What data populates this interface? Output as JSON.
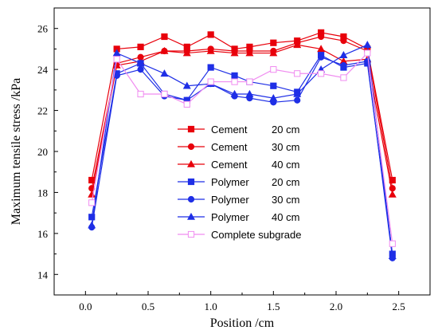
{
  "chart_data": {
    "type": "line",
    "xlabel": "Position /cm",
    "ylabel": "Maximum tensile stress /kPa",
    "xlim": [
      -0.25,
      2.75
    ],
    "ylim": [
      13,
      27
    ],
    "xticks": [
      "0.0",
      "0.5",
      "1.0",
      "1.5",
      "2.0",
      "2.5"
    ],
    "xtick_values": [
      0,
      0.5,
      1.0,
      1.5,
      2.0,
      2.5
    ],
    "yticks": [
      "14",
      "16",
      "18",
      "20",
      "22",
      "24",
      "26"
    ],
    "ytick_values": [
      14,
      16,
      18,
      20,
      22,
      24,
      26
    ],
    "legend_position": "center",
    "grid": false,
    "series": [
      {
        "name": "Cement",
        "depth": "20 cm",
        "color": "#e8000b",
        "marker": "square",
        "filled": true,
        "x": [
          0.05,
          0.25,
          0.44,
          0.63,
          0.81,
          1.0,
          1.19,
          1.31,
          1.5,
          1.69,
          1.88,
          2.06,
          2.25,
          2.45
        ],
        "y": [
          18.6,
          25.0,
          25.1,
          25.6,
          25.1,
          25.7,
          25.0,
          25.1,
          25.3,
          25.4,
          25.8,
          25.6,
          25.0,
          18.6
        ]
      },
      {
        "name": "Cement",
        "depth": "30 cm",
        "color": "#e8000b",
        "marker": "circle",
        "filled": true,
        "x": [
          0.05,
          0.25,
          0.44,
          0.63,
          0.81,
          1.0,
          1.19,
          1.31,
          1.5,
          1.69,
          1.88,
          2.06,
          2.25,
          2.45
        ],
        "y": [
          18.2,
          24.3,
          24.6,
          24.9,
          24.9,
          25.0,
          24.9,
          24.9,
          24.9,
          25.3,
          25.6,
          25.4,
          24.9,
          18.2
        ]
      },
      {
        "name": "Cement",
        "depth": "40 cm",
        "color": "#e8000b",
        "marker": "triangle",
        "filled": true,
        "x": [
          0.05,
          0.25,
          0.44,
          0.63,
          0.81,
          1.0,
          1.19,
          1.31,
          1.5,
          1.69,
          1.88,
          2.06,
          2.25,
          2.45
        ],
        "y": [
          17.9,
          24.2,
          24.4,
          24.9,
          24.8,
          24.9,
          24.8,
          24.8,
          24.8,
          25.2,
          25.0,
          24.4,
          24.5,
          17.9
        ]
      },
      {
        "name": "Polymer",
        "depth": "20 cm",
        "color": "#1f2fe6",
        "marker": "square",
        "filled": true,
        "x": [
          0.05,
          0.25,
          0.44,
          0.63,
          0.81,
          1.0,
          1.19,
          1.31,
          1.5,
          1.69,
          1.88,
          2.06,
          2.25,
          2.45
        ],
        "y": [
          16.8,
          23.8,
          24.3,
          22.8,
          22.5,
          24.1,
          23.7,
          23.4,
          23.2,
          22.9,
          24.7,
          24.1,
          24.3,
          15.0
        ]
      },
      {
        "name": "Polymer",
        "depth": "30 cm",
        "color": "#1f2fe6",
        "marker": "circle",
        "filled": true,
        "x": [
          0.05,
          0.25,
          0.44,
          0.63,
          0.81,
          1.0,
          1.19,
          1.31,
          1.5,
          1.69,
          1.88,
          2.06,
          2.25,
          2.45
        ],
        "y": [
          16.3,
          23.7,
          24.0,
          22.7,
          22.5,
          23.3,
          22.7,
          22.6,
          22.4,
          22.5,
          24.6,
          24.2,
          24.4,
          14.8
        ]
      },
      {
        "name": "Polymer",
        "depth": "40 cm",
        "color": "#1f2fe6",
        "marker": "triangle",
        "filled": true,
        "x": [
          0.05,
          0.25,
          0.44,
          0.63,
          0.81,
          1.0,
          1.19,
          1.31,
          1.5,
          1.69,
          1.88,
          2.06,
          2.25,
          2.45
        ],
        "y": [
          16.4,
          24.8,
          24.3,
          23.8,
          23.2,
          23.3,
          22.8,
          22.8,
          22.6,
          22.8,
          24.0,
          24.7,
          25.2,
          14.9
        ]
      },
      {
        "name": "Complete subgrade",
        "depth": "",
        "color": "#f08cf0",
        "marker": "square",
        "filled": false,
        "x": [
          0.05,
          0.25,
          0.44,
          0.63,
          0.81,
          1.0,
          1.19,
          1.31,
          1.5,
          1.69,
          1.88,
          2.06,
          2.25,
          2.45
        ],
        "y": [
          17.5,
          24.5,
          22.8,
          22.8,
          22.3,
          23.4,
          23.4,
          23.4,
          24.0,
          23.8,
          23.8,
          23.6,
          24.8,
          15.5
        ]
      }
    ]
  }
}
